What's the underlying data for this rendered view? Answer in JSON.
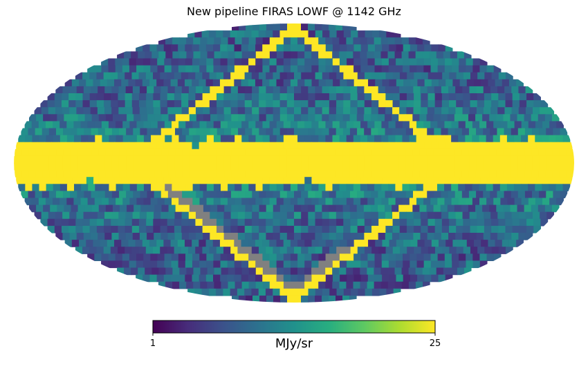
{
  "chart_data": {
    "type": "heatmap",
    "projection": "Mollweide",
    "title": "New pipeline FIRAS LOWF @ 1142 GHz",
    "colormap": "viridis",
    "masked_color": "#808080",
    "vmin": 1,
    "vmax": 25,
    "colorbar": {
      "min_label": "1",
      "max_label": "25",
      "unit_label": "MJy/sr",
      "placement": "bottom"
    },
    "features": {
      "galactic_plane_band": {
        "value": 25,
        "lat_halfwidth_deg": 14
      },
      "high_latitude_level": 8,
      "scan_ring_value": 25,
      "masked_rings": true
    }
  }
}
